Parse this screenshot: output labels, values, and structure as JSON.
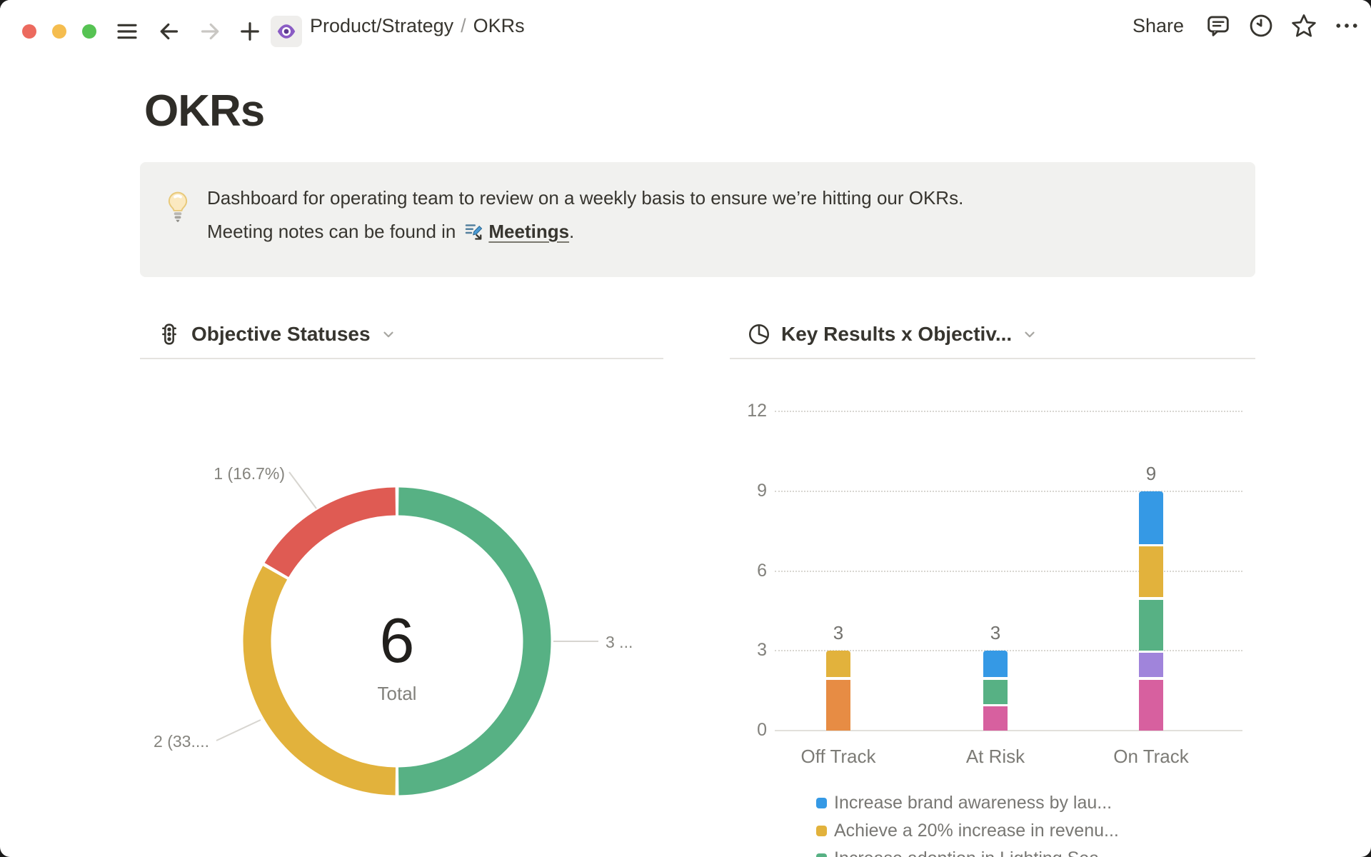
{
  "topbar": {
    "window_controls": [
      {
        "name": "close",
        "color": "#EC6A5E"
      },
      {
        "name": "minimize",
        "color": "#F5BD4F"
      },
      {
        "name": "zoom",
        "color": "#56C353"
      }
    ],
    "breadcrumb": {
      "parent": "Product/Strategy",
      "separator": "/",
      "current": "OKRs"
    },
    "share_label": "Share"
  },
  "page": {
    "title": "OKRs",
    "callout": {
      "icon": "lightbulb-emoji",
      "line1": "Dashboard for operating team to review on a weekly basis to ensure we’re hitting our OKRs.",
      "line2_prefix": "Meeting notes can be found in",
      "link_text": "Meetings",
      "line2_suffix": "."
    }
  },
  "chart_data": [
    {
      "type": "pie",
      "subtype": "donut",
      "title": "Objective Statuses",
      "center_value": "6",
      "center_label": "Total",
      "start": "top",
      "direction": "clockwise",
      "slices": [
        {
          "label": "3 ...",
          "value": 3,
          "color": "#57B184"
        },
        {
          "label": "2 (33....",
          "value": 2,
          "color": "#E2B23C"
        },
        {
          "label": "1 (16.7%)",
          "value": 1,
          "color": "#DF5B53"
        }
      ]
    },
    {
      "type": "bar",
      "stacked": true,
      "title": "Key Results x Objectiv...",
      "categories": [
        "Off Track",
        "At Risk",
        "On Track"
      ],
      "bar_totals": [
        3,
        3,
        9
      ],
      "y_ticks": [
        0,
        3,
        6,
        9,
        12
      ],
      "ylim": [
        0,
        12
      ],
      "grid": "dotted-horizontal",
      "series": [
        {
          "name": "series-pink",
          "color": "#D7609F",
          "values": [
            0,
            1,
            2
          ]
        },
        {
          "name": "series-orange",
          "color": "#E78C44",
          "values": [
            2,
            0,
            0
          ]
        },
        {
          "name": "series-purple",
          "color": "#A084DB",
          "values": [
            0,
            0,
            1
          ]
        },
        {
          "name": "series-green",
          "color": "#57B184",
          "values": [
            0,
            1,
            2
          ]
        },
        {
          "name": "series-yellow",
          "color": "#E2B23C",
          "values": [
            1,
            0,
            2
          ]
        },
        {
          "name": "series-blue",
          "color": "#3599E5",
          "values": [
            0,
            1,
            2
          ]
        }
      ],
      "legend_position": "bottom",
      "legend": [
        {
          "color": "#3599E5",
          "label": "Increase brand awareness by lau..."
        },
        {
          "color": "#E2B23C",
          "label": "Achieve a 20% increase in revenu..."
        },
        {
          "color": "#57B184",
          "label": "Increase adoption in Lighting Sea..."
        }
      ]
    }
  ]
}
